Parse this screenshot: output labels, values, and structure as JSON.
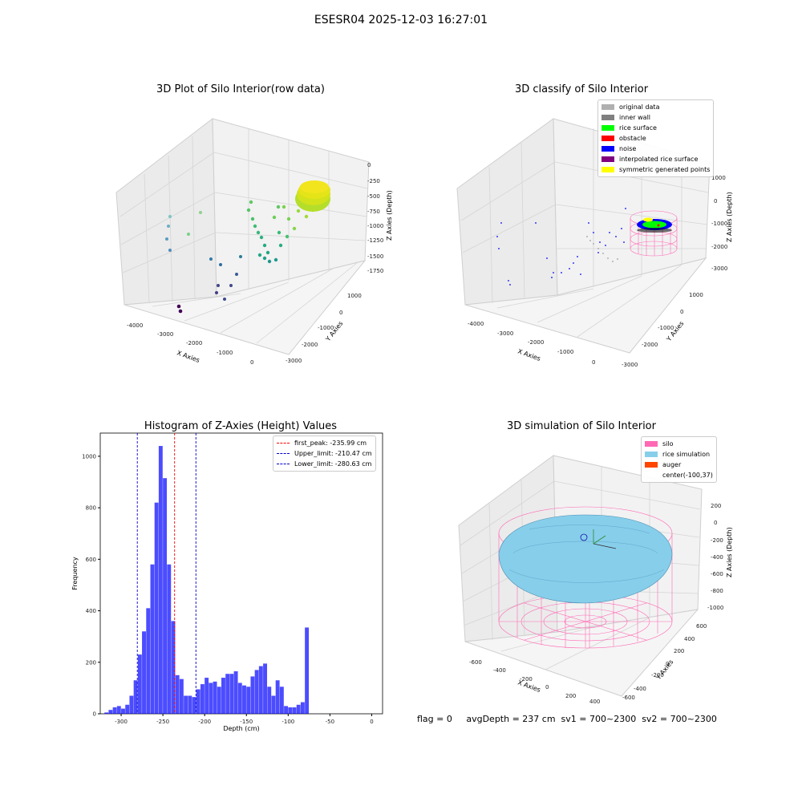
{
  "suptitle": "ESESR04 2025-12-03 16:27:01",
  "status_line": "flag = 0     avgDepth = 237 cm  sv1 = 700~2300  sv2 = 700~2300",
  "colors": {
    "hist_bar": "#0000ff",
    "first_peak": "#ff0000",
    "limits": "#0000cc",
    "silo": "#ff69b4",
    "rice": "#87ceeb",
    "auger": "#ff4500",
    "pane": "#f2f2f2",
    "grid": "#d0d0d0"
  },
  "chart_data": [
    {
      "type": "scatter",
      "title": "3D Plot of Silo Interior(row data)",
      "xlabel": "X Axies",
      "ylabel": "Y Axies",
      "zlabel": "Z Axies (Depth)",
      "x_ticks": [
        "-4000",
        "-3000",
        "-2000",
        "-1000",
        "0"
      ],
      "y_ticks": [
        "1000",
        "0",
        "-1000",
        "-2000",
        "-3000"
      ],
      "z_ticks": [
        "0",
        "-250",
        "-500",
        "-750",
        "-1000",
        "-1250",
        "-1500",
        "-1750"
      ],
      "colormap": "viridis"
    },
    {
      "type": "scatter",
      "title": "3D classify of Silo Interior",
      "xlabel": "X Axies",
      "ylabel": "Y Axies",
      "zlabel": "Z Axies (Depth)",
      "x_ticks": [
        "-4000",
        "-3000",
        "-2000",
        "-1000",
        "0"
      ],
      "y_ticks": [
        "1000",
        "0",
        "-1000",
        "-2000",
        "-3000"
      ],
      "z_ticks": [
        "1000",
        "0",
        "-1000",
        "-2000",
        "-3000"
      ],
      "legend": [
        {
          "label": "original data",
          "color": "#b0b0b0"
        },
        {
          "label": "inner wall",
          "color": "#808080"
        },
        {
          "label": "rice surface",
          "color": "#00ff00"
        },
        {
          "label": "obstacle",
          "color": "#ff0000"
        },
        {
          "label": "noise",
          "color": "#0000ff"
        },
        {
          "label": "interpolated rice surface",
          "color": "#800080"
        },
        {
          "label": "symmetric generated points",
          "color": "#ffff00"
        }
      ]
    },
    {
      "type": "bar",
      "title": "Histogram of Z-Axies (Height) Values",
      "xlabel": "Depth (cm)",
      "ylabel": "Frequency",
      "xlim": [
        -325,
        13
      ],
      "ylim": [
        0,
        1090
      ],
      "x_ticks": [
        -300,
        -250,
        -200,
        -150,
        -100,
        -50,
        0
      ],
      "y_ticks": [
        0,
        200,
        400,
        600,
        800,
        1000
      ],
      "bin_width": 5,
      "bins": [
        {
          "x": -320,
          "y": 5
        },
        {
          "x": -315,
          "y": 15
        },
        {
          "x": -310,
          "y": 25
        },
        {
          "x": -305,
          "y": 30
        },
        {
          "x": -300,
          "y": 20
        },
        {
          "x": -295,
          "y": 35
        },
        {
          "x": -290,
          "y": 70
        },
        {
          "x": -285,
          "y": 130
        },
        {
          "x": -280,
          "y": 230
        },
        {
          "x": -275,
          "y": 320
        },
        {
          "x": -270,
          "y": 410
        },
        {
          "x": -265,
          "y": 580
        },
        {
          "x": -260,
          "y": 820
        },
        {
          "x": -255,
          "y": 1040
        },
        {
          "x": -250,
          "y": 915
        },
        {
          "x": -245,
          "y": 580
        },
        {
          "x": -240,
          "y": 360
        },
        {
          "x": -235,
          "y": 150
        },
        {
          "x": -230,
          "y": 135
        },
        {
          "x": -225,
          "y": 70
        },
        {
          "x": -220,
          "y": 70
        },
        {
          "x": -215,
          "y": 65
        },
        {
          "x": -210,
          "y": 95
        },
        {
          "x": -205,
          "y": 115
        },
        {
          "x": -200,
          "y": 140
        },
        {
          "x": -195,
          "y": 120
        },
        {
          "x": -190,
          "y": 125
        },
        {
          "x": -185,
          "y": 105
        },
        {
          "x": -180,
          "y": 140
        },
        {
          "x": -175,
          "y": 155
        },
        {
          "x": -170,
          "y": 155
        },
        {
          "x": -165,
          "y": 165
        },
        {
          "x": -160,
          "y": 120
        },
        {
          "x": -155,
          "y": 110
        },
        {
          "x": -150,
          "y": 105
        },
        {
          "x": -145,
          "y": 145
        },
        {
          "x": -140,
          "y": 170
        },
        {
          "x": -135,
          "y": 185
        },
        {
          "x": -130,
          "y": 195
        },
        {
          "x": -125,
          "y": 105
        },
        {
          "x": -120,
          "y": 70
        },
        {
          "x": -115,
          "y": 130
        },
        {
          "x": -110,
          "y": 105
        },
        {
          "x": -105,
          "y": 30
        },
        {
          "x": -100,
          "y": 25
        },
        {
          "x": -95,
          "y": 25
        },
        {
          "x": -90,
          "y": 35
        },
        {
          "x": -85,
          "y": 45
        },
        {
          "x": -80,
          "y": 335
        },
        {
          "x": -75,
          "y": 0
        }
      ],
      "vlines": [
        {
          "label": "first_peak: -235.99 cm",
          "x": -235.99,
          "color": "#ff0000"
        },
        {
          "label": "Upper_limit: -210.47 cm",
          "x": -210.47,
          "color": "#0000cc"
        },
        {
          "label": "Lower_limit: -280.63 cm",
          "x": -280.63,
          "color": "#0000cc"
        }
      ]
    },
    {
      "type": "surface",
      "title": "3D simulation of Silo Interior",
      "xlabel": "X Axies",
      "ylabel": "Y Axies",
      "zlabel": "Z Axies (Depth)",
      "x_ticks": [
        "-600",
        "-400",
        "-200",
        "0",
        "200",
        "400"
      ],
      "y_ticks": [
        "600",
        "400",
        "200",
        "0",
        "-200",
        "-400",
        "-600"
      ],
      "z_ticks": [
        "200",
        "0",
        "-200",
        "-400",
        "-600",
        "-800",
        "-1000"
      ],
      "legend": [
        {
          "label": "silo",
          "color": "#ff69b4"
        },
        {
          "label": "rice simulation",
          "color": "#87ceeb"
        },
        {
          "label": "auger",
          "color": "#ff4500"
        },
        {
          "label": "center(-100,37)",
          "color": ""
        }
      ]
    }
  ]
}
